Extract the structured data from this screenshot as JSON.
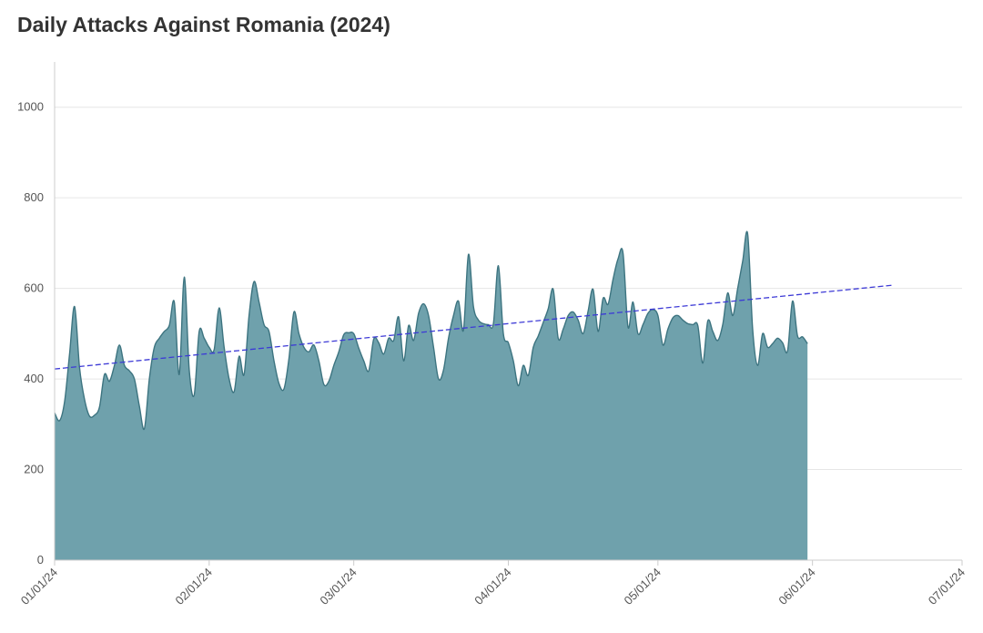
{
  "colors": {
    "area_fill": "#6fa1ac",
    "area_stroke": "#3d7480",
    "trend": "#3d3ad6",
    "grid": "#e6e6e6",
    "axis": "#cccccc"
  },
  "chart_data": {
    "type": "area",
    "title": "Daily Attacks Against Romania (2024)",
    "xlabel": "",
    "ylabel": "",
    "x_axis": {
      "min": "2024-01-01",
      "max": "2024-07-01",
      "ticks": [
        "2024-01-01",
        "2024-02-01",
        "2024-03-01",
        "2024-04-01",
        "2024-05-01",
        "2024-06-01",
        "2024-07-01"
      ],
      "tick_labels": [
        "01/01/24",
        "02/01/24",
        "03/01/24",
        "04/01/24",
        "05/01/24",
        "06/01/24",
        "07/01/24"
      ]
    },
    "y_axis": {
      "min": 0,
      "max": 1100,
      "ticks": [
        0,
        200,
        400,
        600,
        800,
        1000
      ],
      "tick_labels": [
        "0",
        "200",
        "400",
        "600",
        "800",
        "1000"
      ]
    },
    "grid": "horizontal",
    "trendline": {
      "style": "dashed",
      "points": [
        {
          "x": "2024-01-01",
          "y": 422
        },
        {
          "x": "2024-06-17",
          "y": 607
        }
      ]
    },
    "series": [
      {
        "points": [
          {
            "x": "2024-01-01",
            "y": 325
          },
          {
            "x": "2024-01-02",
            "y": 308
          },
          {
            "x": "2024-01-03",
            "y": 350
          },
          {
            "x": "2024-01-04",
            "y": 455
          },
          {
            "x": "2024-01-05",
            "y": 560
          },
          {
            "x": "2024-01-06",
            "y": 425
          },
          {
            "x": "2024-01-07",
            "y": 355
          },
          {
            "x": "2024-01-08",
            "y": 318
          },
          {
            "x": "2024-01-09",
            "y": 320
          },
          {
            "x": "2024-01-10",
            "y": 338
          },
          {
            "x": "2024-01-11",
            "y": 410
          },
          {
            "x": "2024-01-12",
            "y": 395
          },
          {
            "x": "2024-01-13",
            "y": 430
          },
          {
            "x": "2024-01-14",
            "y": 475
          },
          {
            "x": "2024-01-15",
            "y": 430
          },
          {
            "x": "2024-01-16",
            "y": 418
          },
          {
            "x": "2024-01-17",
            "y": 400
          },
          {
            "x": "2024-01-18",
            "y": 340
          },
          {
            "x": "2024-01-19",
            "y": 290
          },
          {
            "x": "2024-01-20",
            "y": 400
          },
          {
            "x": "2024-01-21",
            "y": 470
          },
          {
            "x": "2024-01-22",
            "y": 490
          },
          {
            "x": "2024-01-23",
            "y": 505
          },
          {
            "x": "2024-01-24",
            "y": 518
          },
          {
            "x": "2024-01-25",
            "y": 570
          },
          {
            "x": "2024-01-26",
            "y": 410
          },
          {
            "x": "2024-01-27",
            "y": 625
          },
          {
            "x": "2024-01-28",
            "y": 420
          },
          {
            "x": "2024-01-29",
            "y": 365
          },
          {
            "x": "2024-01-30",
            "y": 505
          },
          {
            "x": "2024-01-31",
            "y": 490
          },
          {
            "x": "2024-02-01",
            "y": 470
          },
          {
            "x": "2024-02-02",
            "y": 465
          },
          {
            "x": "2024-02-03",
            "y": 557
          },
          {
            "x": "2024-02-04",
            "y": 470
          },
          {
            "x": "2024-02-05",
            "y": 400
          },
          {
            "x": "2024-02-06",
            "y": 372
          },
          {
            "x": "2024-02-07",
            "y": 450
          },
          {
            "x": "2024-02-08",
            "y": 410
          },
          {
            "x": "2024-02-09",
            "y": 540
          },
          {
            "x": "2024-02-10",
            "y": 615
          },
          {
            "x": "2024-02-11",
            "y": 570
          },
          {
            "x": "2024-02-12",
            "y": 520
          },
          {
            "x": "2024-02-13",
            "y": 505
          },
          {
            "x": "2024-02-14",
            "y": 440
          },
          {
            "x": "2024-02-15",
            "y": 390
          },
          {
            "x": "2024-02-16",
            "y": 378
          },
          {
            "x": "2024-02-17",
            "y": 445
          },
          {
            "x": "2024-02-18",
            "y": 548
          },
          {
            "x": "2024-02-19",
            "y": 500
          },
          {
            "x": "2024-02-20",
            "y": 470
          },
          {
            "x": "2024-02-21",
            "y": 460
          },
          {
            "x": "2024-02-22",
            "y": 475
          },
          {
            "x": "2024-02-23",
            "y": 440
          },
          {
            "x": "2024-02-24",
            "y": 388
          },
          {
            "x": "2024-02-25",
            "y": 395
          },
          {
            "x": "2024-02-26",
            "y": 430
          },
          {
            "x": "2024-02-27",
            "y": 460
          },
          {
            "x": "2024-02-28",
            "y": 498
          },
          {
            "x": "2024-02-29",
            "y": 502
          },
          {
            "x": "2024-03-01",
            "y": 500
          },
          {
            "x": "2024-03-02",
            "y": 468
          },
          {
            "x": "2024-03-03",
            "y": 440
          },
          {
            "x": "2024-03-04",
            "y": 418
          },
          {
            "x": "2024-03-05",
            "y": 488
          },
          {
            "x": "2024-03-06",
            "y": 480
          },
          {
            "x": "2024-03-07",
            "y": 455
          },
          {
            "x": "2024-03-08",
            "y": 490
          },
          {
            "x": "2024-03-09",
            "y": 485
          },
          {
            "x": "2024-03-10",
            "y": 537
          },
          {
            "x": "2024-03-11",
            "y": 440
          },
          {
            "x": "2024-03-12",
            "y": 518
          },
          {
            "x": "2024-03-13",
            "y": 485
          },
          {
            "x": "2024-03-14",
            "y": 545
          },
          {
            "x": "2024-03-15",
            "y": 566
          },
          {
            "x": "2024-03-16",
            "y": 540
          },
          {
            "x": "2024-03-17",
            "y": 470
          },
          {
            "x": "2024-03-18",
            "y": 400
          },
          {
            "x": "2024-03-19",
            "y": 420
          },
          {
            "x": "2024-03-20",
            "y": 490
          },
          {
            "x": "2024-03-21",
            "y": 540
          },
          {
            "x": "2024-03-22",
            "y": 572
          },
          {
            "x": "2024-03-23",
            "y": 508
          },
          {
            "x": "2024-03-24",
            "y": 675
          },
          {
            "x": "2024-03-25",
            "y": 560
          },
          {
            "x": "2024-03-26",
            "y": 530
          },
          {
            "x": "2024-03-27",
            "y": 522
          },
          {
            "x": "2024-03-28",
            "y": 520
          },
          {
            "x": "2024-03-29",
            "y": 522
          },
          {
            "x": "2024-03-30",
            "y": 650
          },
          {
            "x": "2024-03-31",
            "y": 500
          },
          {
            "x": "2024-04-01",
            "y": 480
          },
          {
            "x": "2024-04-02",
            "y": 440
          },
          {
            "x": "2024-04-03",
            "y": 385
          },
          {
            "x": "2024-04-04",
            "y": 430
          },
          {
            "x": "2024-04-05",
            "y": 408
          },
          {
            "x": "2024-04-06",
            "y": 470
          },
          {
            "x": "2024-04-07",
            "y": 495
          },
          {
            "x": "2024-04-08",
            "y": 525
          },
          {
            "x": "2024-04-09",
            "y": 555
          },
          {
            "x": "2024-04-10",
            "y": 598
          },
          {
            "x": "2024-04-11",
            "y": 490
          },
          {
            "x": "2024-04-12",
            "y": 510
          },
          {
            "x": "2024-04-13",
            "y": 540
          },
          {
            "x": "2024-04-14",
            "y": 548
          },
          {
            "x": "2024-04-15",
            "y": 530
          },
          {
            "x": "2024-04-16",
            "y": 500
          },
          {
            "x": "2024-04-17",
            "y": 550
          },
          {
            "x": "2024-04-18",
            "y": 598
          },
          {
            "x": "2024-04-19",
            "y": 505
          },
          {
            "x": "2024-04-20",
            "y": 578
          },
          {
            "x": "2024-04-21",
            "y": 565
          },
          {
            "x": "2024-04-22",
            "y": 620
          },
          {
            "x": "2024-04-23",
            "y": 665
          },
          {
            "x": "2024-04-24",
            "y": 678
          },
          {
            "x": "2024-04-25",
            "y": 515
          },
          {
            "x": "2024-04-26",
            "y": 570
          },
          {
            "x": "2024-04-27",
            "y": 500
          },
          {
            "x": "2024-04-28",
            "y": 520
          },
          {
            "x": "2024-04-29",
            "y": 545
          },
          {
            "x": "2024-04-30",
            "y": 553
          },
          {
            "x": "2024-05-01",
            "y": 540
          },
          {
            "x": "2024-05-02",
            "y": 475
          },
          {
            "x": "2024-05-03",
            "y": 510
          },
          {
            "x": "2024-05-04",
            "y": 535
          },
          {
            "x": "2024-05-05",
            "y": 540
          },
          {
            "x": "2024-05-06",
            "y": 530
          },
          {
            "x": "2024-05-07",
            "y": 522
          },
          {
            "x": "2024-05-08",
            "y": 520
          },
          {
            "x": "2024-05-09",
            "y": 518
          },
          {
            "x": "2024-05-10",
            "y": 435
          },
          {
            "x": "2024-05-11",
            "y": 528
          },
          {
            "x": "2024-05-12",
            "y": 505
          },
          {
            "x": "2024-05-13",
            "y": 485
          },
          {
            "x": "2024-05-14",
            "y": 520
          },
          {
            "x": "2024-05-15",
            "y": 590
          },
          {
            "x": "2024-05-16",
            "y": 540
          },
          {
            "x": "2024-05-17",
            "y": 600
          },
          {
            "x": "2024-05-18",
            "y": 660
          },
          {
            "x": "2024-05-19",
            "y": 720
          },
          {
            "x": "2024-05-20",
            "y": 510
          },
          {
            "x": "2024-05-21",
            "y": 430
          },
          {
            "x": "2024-05-22",
            "y": 500
          },
          {
            "x": "2024-05-23",
            "y": 470
          },
          {
            "x": "2024-05-24",
            "y": 478
          },
          {
            "x": "2024-05-25",
            "y": 490
          },
          {
            "x": "2024-05-26",
            "y": 480
          },
          {
            "x": "2024-05-27",
            "y": 462
          },
          {
            "x": "2024-05-28",
            "y": 572
          },
          {
            "x": "2024-05-29",
            "y": 495
          },
          {
            "x": "2024-05-30",
            "y": 493
          },
          {
            "x": "2024-05-31",
            "y": 478
          }
        ]
      }
    ]
  }
}
